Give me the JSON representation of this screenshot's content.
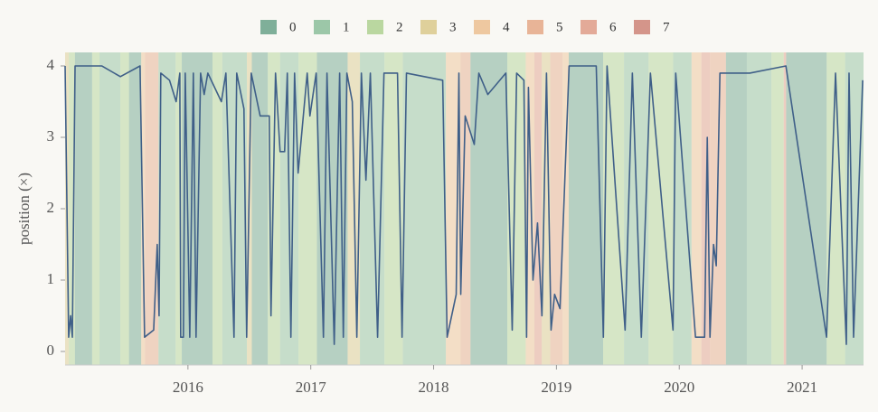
{
  "chart_data": {
    "type": "line",
    "y_label": "position (×)",
    "color": "#3f5f88",
    "x": [
      2015.0,
      2015.029,
      2015.045,
      2015.059,
      2015.081,
      2015.3,
      2015.45,
      2015.61,
      2015.647,
      2015.721,
      2015.75,
      2015.765,
      2015.779,
      2015.85,
      2015.904,
      2015.934,
      2015.941,
      2015.963,
      2015.978,
      2016.015,
      2016.044,
      2016.066,
      2016.103,
      2016.132,
      2016.162,
      2016.272,
      2016.309,
      2016.375,
      2016.397,
      2016.456,
      2016.478,
      2016.515,
      2016.588,
      2016.662,
      2016.676,
      2016.713,
      2016.75,
      2016.787,
      2016.809,
      2016.838,
      2016.868,
      2016.897,
      2016.971,
      2016.993,
      2017.044,
      2017.103,
      2017.132,
      2017.191,
      2017.235,
      2017.265,
      2017.294,
      2017.338,
      2017.375,
      2017.412,
      2017.449,
      2017.485,
      2017.544,
      2017.596,
      2017.706,
      2017.743,
      2017.779,
      2018.074,
      2018.11,
      2018.184,
      2018.206,
      2018.221,
      2018.257,
      2018.331,
      2018.368,
      2018.441,
      2018.588,
      2018.64,
      2018.676,
      2018.735,
      2018.757,
      2018.772,
      2018.809,
      2018.846,
      2018.882,
      2018.919,
      2018.956,
      2018.985,
      2019.029,
      2019.066,
      2019.103,
      2019.324,
      2019.382,
      2019.412,
      2019.559,
      2019.618,
      2019.691,
      2019.765,
      2019.949,
      2019.971,
      2020.132,
      2020.206,
      2020.228,
      2020.25,
      2020.279,
      2020.301,
      2020.331,
      2020.574,
      2020.868,
      2021.199,
      2021.272,
      2021.36,
      2021.382,
      2021.419,
      2021.493
    ],
    "values": [
      4,
      0.2,
      0.5,
      0.2,
      4,
      4,
      3.85,
      4,
      0.2,
      0.3,
      1.5,
      0.5,
      3.9,
      3.8,
      3.5,
      3.9,
      0.2,
      0.2,
      3.9,
      0.2,
      3.9,
      0.2,
      3.9,
      3.6,
      3.9,
      3.5,
      3.9,
      0.2,
      3.9,
      3.4,
      0.2,
      3.9,
      3.3,
      3.3,
      0.5,
      3.9,
      2.8,
      2.8,
      3.9,
      0.2,
      3.9,
      2.5,
      3.9,
      3.3,
      3.9,
      0.2,
      3.9,
      0.1,
      3.9,
      0.2,
      3.9,
      3.5,
      0.2,
      3.9,
      2.4,
      3.9,
      0.2,
      3.9,
      3.9,
      0.2,
      3.9,
      3.8,
      0.2,
      0.8,
      3.9,
      0.8,
      3.3,
      2.9,
      3.9,
      3.6,
      3.9,
      0.3,
      3.9,
      3.8,
      0.2,
      3.7,
      1.0,
      1.8,
      0.5,
      3.9,
      0.3,
      0.8,
      0.6,
      2.3,
      4,
      4,
      0.2,
      4,
      0.3,
      3.9,
      0.2,
      3.9,
      0.3,
      3.9,
      0.2,
      0.2,
      3.0,
      0.2,
      1.5,
      1.2,
      3.9,
      3.9,
      4,
      0.2,
      3.9,
      0.1,
      3.9,
      0.2,
      3.8
    ],
    "regimes": [
      {
        "name": "0",
        "color": "#7faf99"
      },
      {
        "name": "1",
        "color": "#9cc7a8"
      },
      {
        "name": "2",
        "color": "#bad7a0"
      },
      {
        "name": "3",
        "color": "#dfd09b"
      },
      {
        "name": "4",
        "color": "#eec8a0"
      },
      {
        "name": "5",
        "color": "#e8b497"
      },
      {
        "name": "6",
        "color": "#e3aa98"
      },
      {
        "name": "7",
        "color": "#d4958a"
      }
    ],
    "bands": {
      "edges": [
        2015.0,
        2015.03,
        2015.08,
        2015.22,
        2015.28,
        2015.45,
        2015.52,
        2015.62,
        2015.65,
        2015.76,
        2015.9,
        2015.95,
        2016.2,
        2016.28,
        2016.48,
        2016.52,
        2016.65,
        2016.75,
        2016.9,
        2017.05,
        2017.3,
        2017.4,
        2017.6,
        2017.75,
        2018.1,
        2018.22,
        2018.3,
        2018.6,
        2018.75,
        2018.82,
        2018.88,
        2018.95,
        2019.05,
        2019.1,
        2019.38,
        2019.55,
        2019.75,
        2019.95,
        2020.1,
        2020.18,
        2020.25,
        2020.38,
        2020.55,
        2020.75,
        2020.85,
        2020.87,
        2021.2,
        2021.35,
        2021.5
      ],
      "regime": [
        3,
        2,
        0,
        2,
        1,
        2,
        0,
        4,
        5,
        1,
        2,
        0,
        2,
        1,
        3,
        0,
        2,
        1,
        2,
        0,
        3,
        1,
        2,
        1,
        4,
        5,
        0,
        2,
        4,
        6,
        3,
        5,
        4,
        0,
        2,
        1,
        2,
        1,
        4,
        6,
        5,
        0,
        1,
        2,
        6,
        0,
        2,
        1
      ]
    },
    "xlim": [
      2015.0,
      2021.5
    ],
    "ylim": [
      -0.19,
      4.19
    ],
    "xticks": [
      2016,
      2017,
      2018,
      2019,
      2020,
      2021
    ],
    "yticks": [
      0,
      1,
      2,
      3,
      4
    ]
  }
}
